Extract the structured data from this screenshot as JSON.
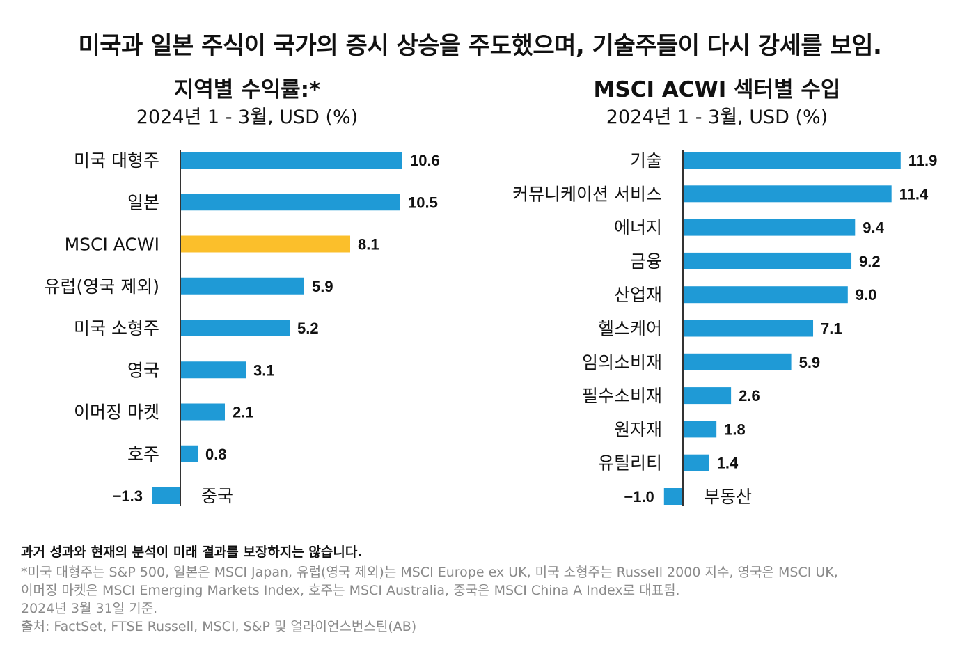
{
  "page": {
    "main_title": "미국과 일본 주식이 국가의 증시 상승을 주도했으며, 기술주들이 다시 강세를 보임."
  },
  "colors": {
    "bar": "#1f9ad6",
    "highlight": "#fbbf2b",
    "axis": "#333333"
  },
  "chart_data": [
    {
      "type": "bar",
      "orientation": "horizontal",
      "title": "지역별 수익률:*",
      "subtitle": "2024년 1 - 3월, USD (%)",
      "categories": [
        "미국 대형주",
        "일본",
        "MSCI ACWI",
        "유럽(영국 제외)",
        "미국 소형주",
        "영국",
        "이머징 마켓",
        "호주",
        "중국"
      ],
      "values": [
        10.6,
        10.5,
        8.1,
        5.9,
        5.2,
        3.1,
        2.1,
        0.8,
        -1.3
      ],
      "value_labels": [
        "10.6",
        "10.5",
        "8.1",
        "5.9",
        "5.2",
        "3.1",
        "2.1",
        "0.8",
        "−1.3"
      ],
      "highlight": "MSCI ACWI",
      "xlim": [
        -1.3,
        10.6
      ]
    },
    {
      "type": "bar",
      "orientation": "horizontal",
      "title": "MSCI ACWI 섹터별 수입",
      "subtitle": "2024년 1 - 3월, USD (%)",
      "categories": [
        "기술",
        "커뮤니케이션 서비스",
        "에너지",
        "금융",
        "산업재",
        "헬스케어",
        "임의소비재",
        "필수소비재",
        "원자재",
        "유틸리티",
        "부동산"
      ],
      "values": [
        11.9,
        11.4,
        9.4,
        9.2,
        9.0,
        7.1,
        5.9,
        2.6,
        1.8,
        1.4,
        -1.0
      ],
      "value_labels": [
        "11.9",
        "11.4",
        "9.4",
        "9.2",
        "9.0",
        "7.1",
        "5.9",
        "2.6",
        "1.8",
        "1.4",
        "−1.0"
      ],
      "xlim": [
        -1.0,
        11.9
      ]
    }
  ],
  "footnotes": {
    "disclaimer": "과거 성과와 현재의 분석이 미래 결과를 보장하지는 않습니다.",
    "lines": [
      "*미국 대형주는 S&P 500, 일본은 MSCI Japan, 유럽(영국 제외)는 MSCI Europe ex UK, 미국 소형주는 Russell 2000 지수, 영국은 MSCI UK,",
      "이머징 마켓은 MSCI Emerging Markets Index, 호주는 MSCI Australia, 중국은 MSCI China A Index로 대표됨.",
      "2024년 3월 31일 기준.",
      "출처: FactSet, FTSE Russell, MSCI, S&P 및 얼라이언스번스틴(AB)"
    ]
  }
}
